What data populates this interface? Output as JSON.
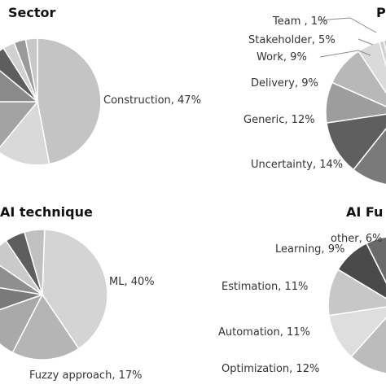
{
  "chart_data": [
    {
      "type": "pie",
      "title": "Sector",
      "slices": [
        {
          "label": "Construction, 47%",
          "value": 47,
          "color": "#c4c4c4"
        },
        {
          "label": "",
          "value": 14,
          "color": "#d9d9d9"
        },
        {
          "label": "",
          "value": 14,
          "color": "#a2a2a2"
        },
        {
          "label": "",
          "value": 11,
          "color": "#8a8a8a"
        },
        {
          "label": "",
          "value": 5,
          "color": "#5e5e5e"
        },
        {
          "label": "",
          "value": 3,
          "color": "#d0d0d0"
        },
        {
          "label": "",
          "value": 3,
          "color": "#9a9a9a"
        },
        {
          "label": "",
          "value": 3,
          "color": "#c8c8c8"
        }
      ]
    },
    {
      "type": "pie",
      "title": "P",
      "slices": [
        {
          "label": "Team , 1%",
          "value": 1,
          "color": "#cfcfcf"
        },
        {
          "label": "Stakeholder, 5%",
          "value": 5,
          "color": "#dadada"
        },
        {
          "label": "Work, 9%",
          "value": 9,
          "color": "#b8b8b8"
        },
        {
          "label": "Delivery, 9%",
          "value": 9,
          "color": "#9d9d9d"
        },
        {
          "label": "Generic, 12%",
          "value": 12,
          "color": "#5f5f5f"
        },
        {
          "label": "Uncertainty, 14%",
          "value": 14,
          "color": "#7a7a7a"
        },
        {
          "label": "",
          "value": 50,
          "color": "#bcbcbc"
        }
      ]
    },
    {
      "type": "pie",
      "title": "AI technique",
      "slices": [
        {
          "label": "ML, 40%",
          "value": 40,
          "color": "#d4d4d4"
        },
        {
          "label": "Fuzzy approach, 17%",
          "value": 17,
          "color": "#b5b5b5"
        },
        {
          "label": "",
          "value": 12,
          "color": "#a9a9a9"
        },
        {
          "label": "",
          "value": 8,
          "color": "#7a7a7a"
        },
        {
          "label": "",
          "value": 7,
          "color": "#8f8f8f"
        },
        {
          "label": "",
          "value": 6,
          "color": "#cacaca"
        },
        {
          "label": "",
          "value": 5,
          "color": "#5e5e5e"
        },
        {
          "label": "",
          "value": 5,
          "color": "#c0c0c0"
        }
      ]
    },
    {
      "type": "pie",
      "title": "AI Fu",
      "slices": [
        {
          "label": "other, 6%",
          "value": 6,
          "color": "#6a6a6a"
        },
        {
          "label": "Learning, 9%",
          "value": 9,
          "color": "#4a4a4a"
        },
        {
          "label": "Estimation, 11%",
          "value": 11,
          "color": "#c7c7c7"
        },
        {
          "label": "Automation, 11%",
          "value": 11,
          "color": "#dedede"
        },
        {
          "label": "Optimization, 12%",
          "value": 12,
          "color": "#bcbcbc"
        },
        {
          "label": "",
          "value": 51,
          "color": "#c4c4c4"
        }
      ]
    }
  ]
}
